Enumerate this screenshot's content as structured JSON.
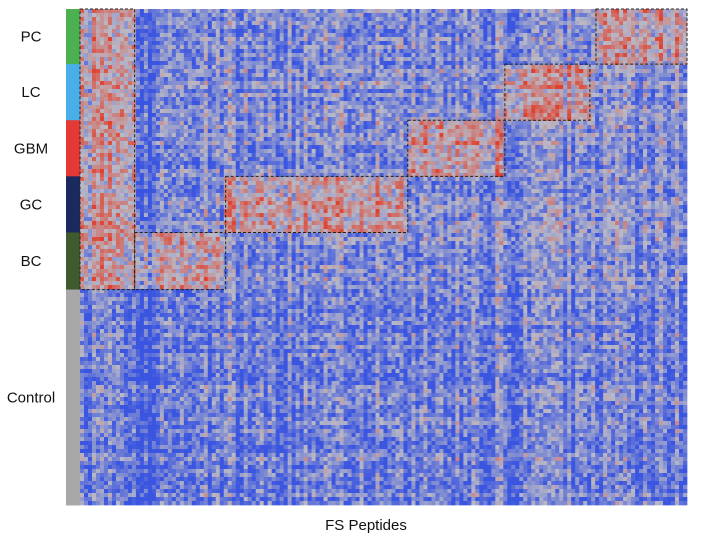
{
  "chart_data": {
    "type": "heatmap",
    "title": "",
    "xlabel": "FS Peptides",
    "ylabel": "",
    "color_scale": {
      "low": "#3a55e0",
      "mid": "#b9b9c6",
      "high": "#e0402c"
    },
    "groups": [
      {
        "label": "PC",
        "color": "#4caf50",
        "rows": 55
      },
      {
        "label": "LC",
        "color": "#4aaee8",
        "rows": 56
      },
      {
        "label": "GBM",
        "color": "#e53935",
        "rows": 56
      },
      {
        "label": "GC",
        "color": "#1a2a5e",
        "rows": 56
      },
      {
        "label": "BC",
        "color": "#3e5a2e",
        "rows": 57
      },
      {
        "label": "Control",
        "color": "#a8a8a8",
        "rows": 215
      }
    ],
    "bicluster_blocks": [
      {
        "group": "PC",
        "peptide_range": [
          0.0,
          0.09
        ],
        "row_group_span": [
          "PC",
          "BC"
        ]
      },
      {
        "group": "BC",
        "peptide_range": [
          0.09,
          0.24
        ]
      },
      {
        "group": "GC",
        "peptide_range": [
          0.24,
          0.54
        ]
      },
      {
        "group": "GBM",
        "peptide_range": [
          0.54,
          0.7
        ]
      },
      {
        "group": "LC",
        "peptide_range": [
          0.7,
          0.84
        ]
      },
      {
        "group": "PC",
        "peptide_range": [
          0.85,
          1.0
        ]
      }
    ]
  }
}
